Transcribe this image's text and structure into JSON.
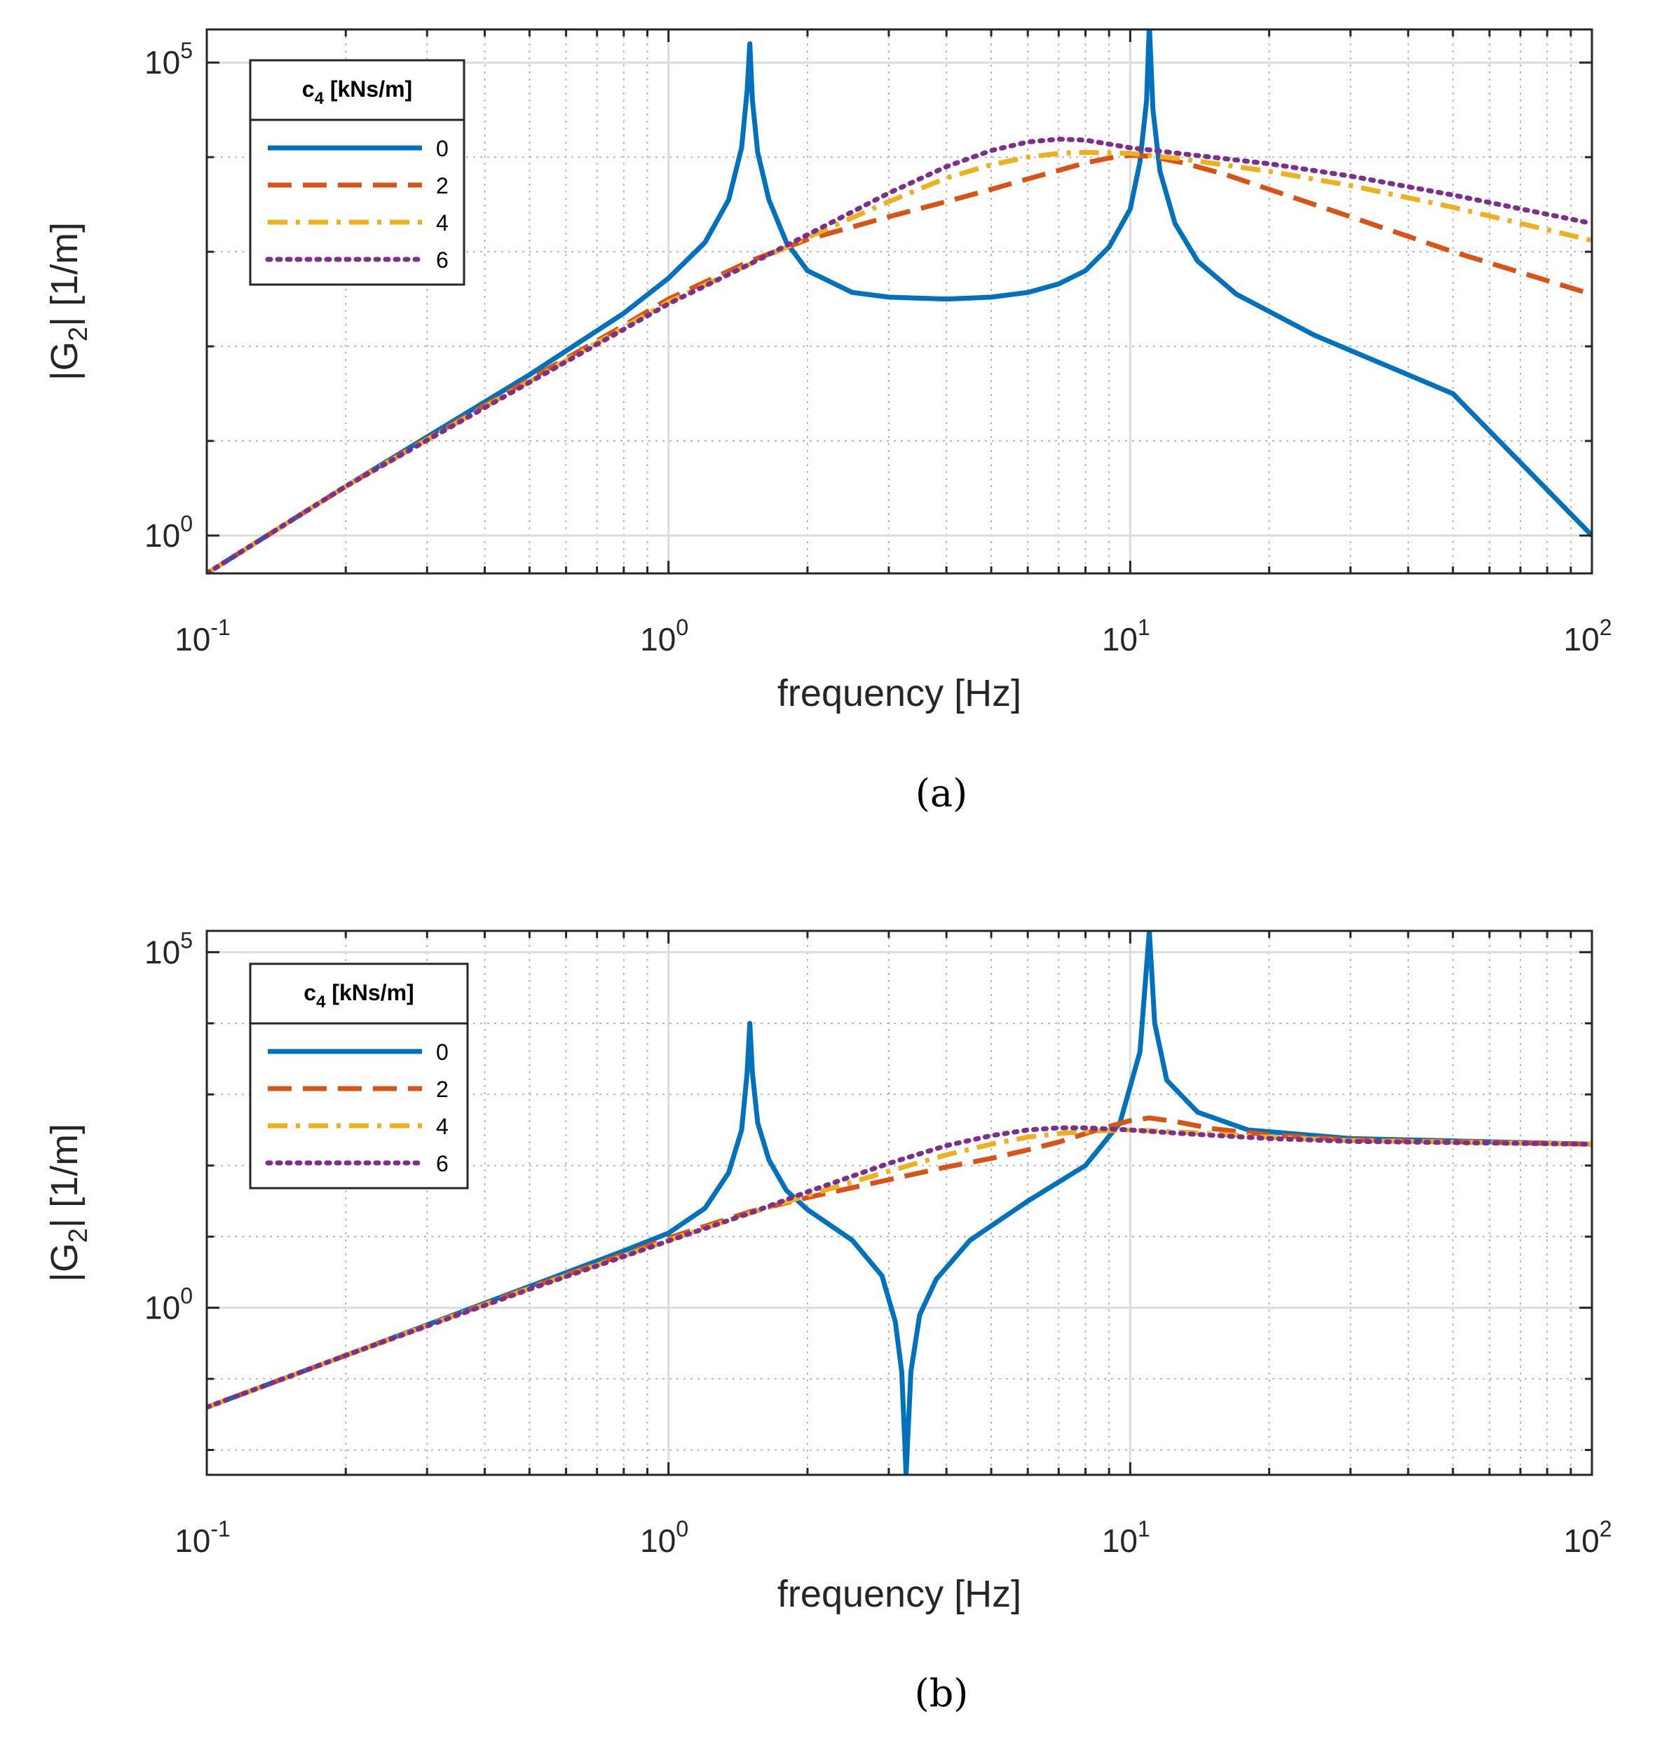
{
  "chart_data": [
    {
      "id": "a",
      "type": "line",
      "panel_label": "(a)",
      "title": "",
      "xlabel": "frequency [Hz]",
      "ylabel": "|G2| [1/m]",
      "ylabel_parts": {
        "main": "|G",
        "sub": "2",
        "rest": "| [1/m]"
      },
      "xscale": "log",
      "yscale": "log",
      "xlim": [
        0.1,
        100
      ],
      "ylim_log10": [
        -0.4,
        5.35
      ],
      "x_ticks": [
        {
          "base": "10",
          "exp": "-1",
          "value": 0.1
        },
        {
          "base": "10",
          "exp": "0",
          "value": 1
        },
        {
          "base": "10",
          "exp": "1",
          "value": 10
        },
        {
          "base": "10",
          "exp": "2",
          "value": 100
        }
      ],
      "y_ticks": [
        {
          "base": "10",
          "exp": "0",
          "value": 1
        },
        {
          "base": "10",
          "exp": "5",
          "value": 100000
        }
      ],
      "grid": true,
      "legend": {
        "title_main": "c",
        "title_sub": "4",
        "title_rest": " [kNs/m]",
        "placement": "top-left",
        "entries": [
          "0",
          "2",
          "4",
          "6"
        ]
      },
      "series": [
        {
          "name": "0",
          "color": "#0072BD",
          "style": "solid",
          "points": [
            [
              0.1,
              -0.4
            ],
            [
              0.2,
              0.52
            ],
            [
              0.5,
              1.7
            ],
            [
              0.8,
              2.35
            ],
            [
              1.0,
              2.72
            ],
            [
              1.2,
              3.1
            ],
            [
              1.35,
              3.55
            ],
            [
              1.44,
              4.1
            ],
            [
              1.48,
              4.7
            ],
            [
              1.5,
              5.2
            ],
            [
              1.52,
              4.6
            ],
            [
              1.56,
              4.05
            ],
            [
              1.65,
              3.55
            ],
            [
              1.8,
              3.1
            ],
            [
              2.0,
              2.8
            ],
            [
              2.5,
              2.57
            ],
            [
              3.0,
              2.52
            ],
            [
              4.0,
              2.5
            ],
            [
              5.0,
              2.52
            ],
            [
              6.0,
              2.57
            ],
            [
              7.0,
              2.66
            ],
            [
              8.0,
              2.8
            ],
            [
              9.0,
              3.05
            ],
            [
              10.0,
              3.45
            ],
            [
              10.5,
              3.95
            ],
            [
              10.85,
              4.6
            ],
            [
              11.0,
              5.4
            ],
            [
              11.2,
              4.5
            ],
            [
              11.6,
              3.85
            ],
            [
              12.5,
              3.3
            ],
            [
              14.0,
              2.9
            ],
            [
              17.0,
              2.55
            ],
            [
              25.0,
              2.12
            ],
            [
              50.0,
              1.5
            ],
            [
              100.0,
              0.0
            ]
          ]
        },
        {
          "name": "2",
          "color": "#D95319",
          "style": "dashed",
          "points": [
            [
              0.1,
              -0.4
            ],
            [
              0.2,
              0.52
            ],
            [
              0.5,
              1.65
            ],
            [
              0.8,
              2.22
            ],
            [
              1.0,
              2.5
            ],
            [
              1.5,
              2.9
            ],
            [
              2.0,
              3.13
            ],
            [
              3.0,
              3.37
            ],
            [
              4.0,
              3.53
            ],
            [
              5.0,
              3.66
            ],
            [
              6.0,
              3.77
            ],
            [
              7.0,
              3.86
            ],
            [
              8.0,
              3.94
            ],
            [
              9.0,
              3.99
            ],
            [
              10.0,
              4.02
            ],
            [
              11.0,
              4.01
            ],
            [
              13.0,
              3.94
            ],
            [
              16.0,
              3.82
            ],
            [
              20.0,
              3.66
            ],
            [
              30.0,
              3.37
            ],
            [
              50.0,
              3.0
            ],
            [
              100.0,
              2.55
            ]
          ]
        },
        {
          "name": "4",
          "color": "#EDB120",
          "style": "dashdot",
          "points": [
            [
              0.1,
              -0.4
            ],
            [
              0.2,
              0.52
            ],
            [
              0.5,
              1.63
            ],
            [
              0.8,
              2.2
            ],
            [
              1.0,
              2.47
            ],
            [
              1.5,
              2.87
            ],
            [
              2.0,
              3.15
            ],
            [
              3.0,
              3.53
            ],
            [
              4.0,
              3.78
            ],
            [
              5.0,
              3.92
            ],
            [
              6.0,
              4.0
            ],
            [
              7.0,
              4.04
            ],
            [
              8.0,
              4.05
            ],
            [
              10.0,
              4.04
            ],
            [
              13.0,
              3.98
            ],
            [
              20.0,
              3.85
            ],
            [
              30.0,
              3.7
            ],
            [
              50.0,
              3.47
            ],
            [
              100.0,
              3.12
            ]
          ]
        },
        {
          "name": "6",
          "color": "#7E2F8E",
          "style": "dotted",
          "points": [
            [
              0.1,
              -0.4
            ],
            [
              0.2,
              0.52
            ],
            [
              0.5,
              1.62
            ],
            [
              0.8,
              2.18
            ],
            [
              1.0,
              2.45
            ],
            [
              1.5,
              2.87
            ],
            [
              2.0,
              3.18
            ],
            [
              3.0,
              3.62
            ],
            [
              4.0,
              3.9
            ],
            [
              5.0,
              4.07
            ],
            [
              6.0,
              4.16
            ],
            [
              7.0,
              4.19
            ],
            [
              8.0,
              4.18
            ],
            [
              10.0,
              4.1
            ],
            [
              15.0,
              4.0
            ],
            [
              20.0,
              3.93
            ],
            [
              30.0,
              3.8
            ],
            [
              50.0,
              3.6
            ],
            [
              100.0,
              3.3
            ]
          ]
        }
      ]
    },
    {
      "id": "b",
      "type": "line",
      "panel_label": "(b)",
      "title": "",
      "xlabel": "frequency [Hz]",
      "ylabel": "|G2| [1/m]",
      "ylabel_parts": {
        "main": "|G",
        "sub": "2",
        "rest": "| [1/m]"
      },
      "xscale": "log",
      "yscale": "log",
      "xlim": [
        0.1,
        100
      ],
      "ylim_log10": [
        -2.35,
        5.3
      ],
      "x_ticks": [
        {
          "base": "10",
          "exp": "-1",
          "value": 0.1
        },
        {
          "base": "10",
          "exp": "0",
          "value": 1
        },
        {
          "base": "10",
          "exp": "1",
          "value": 10
        },
        {
          "base": "10",
          "exp": "2",
          "value": 100
        }
      ],
      "y_ticks": [
        {
          "base": "10",
          "exp": "0",
          "value": 1
        },
        {
          "base": "10",
          "exp": "5",
          "value": 100000
        }
      ],
      "grid": true,
      "legend": {
        "title_main": "c",
        "title_sub": "4",
        "title_rest": " [kNs/m]",
        "placement": "top-left",
        "entries": [
          "0",
          "2",
          "4",
          "6"
        ]
      },
      "series": [
        {
          "name": "0",
          "color": "#0072BD",
          "style": "solid",
          "points": [
            [
              0.1,
              -1.4
            ],
            [
              0.2,
              -0.67
            ],
            [
              0.5,
              0.3
            ],
            [
              0.8,
              0.8
            ],
            [
              1.0,
              1.05
            ],
            [
              1.2,
              1.4
            ],
            [
              1.35,
              1.9
            ],
            [
              1.44,
              2.5
            ],
            [
              1.48,
              3.3
            ],
            [
              1.5,
              4.0
            ],
            [
              1.52,
              3.3
            ],
            [
              1.56,
              2.6
            ],
            [
              1.65,
              2.08
            ],
            [
              1.8,
              1.65
            ],
            [
              2.0,
              1.38
            ],
            [
              2.5,
              0.95
            ],
            [
              2.9,
              0.45
            ],
            [
              3.1,
              -0.2
            ],
            [
              3.2,
              -0.9
            ],
            [
              3.25,
              -1.9
            ],
            [
              3.27,
              -2.35
            ],
            [
              3.3,
              -1.8
            ],
            [
              3.35,
              -0.9
            ],
            [
              3.5,
              -0.1
            ],
            [
              3.8,
              0.4
            ],
            [
              4.5,
              0.95
            ],
            [
              6.0,
              1.5
            ],
            [
              8.0,
              2.0
            ],
            [
              9.5,
              2.6
            ],
            [
              10.5,
              3.6
            ],
            [
              11.0,
              5.3
            ],
            [
              11.3,
              4.0
            ],
            [
              12.0,
              3.2
            ],
            [
              14.0,
              2.75
            ],
            [
              18.0,
              2.5
            ],
            [
              30.0,
              2.38
            ],
            [
              100.0,
              2.3
            ]
          ]
        },
        {
          "name": "2",
          "color": "#D95319",
          "style": "dashed",
          "points": [
            [
              0.1,
              -1.4
            ],
            [
              0.2,
              -0.67
            ],
            [
              0.5,
              0.28
            ],
            [
              0.8,
              0.75
            ],
            [
              1.0,
              0.98
            ],
            [
              1.5,
              1.35
            ],
            [
              2.0,
              1.55
            ],
            [
              3.0,
              1.8
            ],
            [
              4.0,
              1.98
            ],
            [
              5.0,
              2.1
            ],
            [
              6.0,
              2.22
            ],
            [
              7.0,
              2.33
            ],
            [
              8.0,
              2.45
            ],
            [
              9.0,
              2.55
            ],
            [
              10.0,
              2.63
            ],
            [
              11.0,
              2.67
            ],
            [
              12.5,
              2.62
            ],
            [
              15.0,
              2.52
            ],
            [
              20.0,
              2.43
            ],
            [
              30.0,
              2.36
            ],
            [
              100.0,
              2.3
            ]
          ]
        },
        {
          "name": "4",
          "color": "#EDB120",
          "style": "dashdot",
          "points": [
            [
              0.1,
              -1.4
            ],
            [
              0.2,
              -0.67
            ],
            [
              0.5,
              0.27
            ],
            [
              0.8,
              0.73
            ],
            [
              1.0,
              0.95
            ],
            [
              1.5,
              1.33
            ],
            [
              2.0,
              1.58
            ],
            [
              3.0,
              1.92
            ],
            [
              4.0,
              2.15
            ],
            [
              5.0,
              2.3
            ],
            [
              6.0,
              2.4
            ],
            [
              7.0,
              2.45
            ],
            [
              8.0,
              2.48
            ],
            [
              10.0,
              2.5
            ],
            [
              13.0,
              2.47
            ],
            [
              20.0,
              2.4
            ],
            [
              30.0,
              2.35
            ],
            [
              100.0,
              2.3
            ]
          ]
        },
        {
          "name": "6",
          "color": "#7E2F8E",
          "style": "dotted",
          "points": [
            [
              0.1,
              -1.4
            ],
            [
              0.2,
              -0.67
            ],
            [
              0.5,
              0.26
            ],
            [
              0.8,
              0.72
            ],
            [
              1.0,
              0.94
            ],
            [
              1.5,
              1.33
            ],
            [
              2.0,
              1.63
            ],
            [
              3.0,
              2.03
            ],
            [
              4.0,
              2.28
            ],
            [
              5.0,
              2.42
            ],
            [
              6.0,
              2.5
            ],
            [
              7.0,
              2.53
            ],
            [
              8.0,
              2.53
            ],
            [
              10.0,
              2.5
            ],
            [
              13.0,
              2.45
            ],
            [
              20.0,
              2.38
            ],
            [
              30.0,
              2.34
            ],
            [
              100.0,
              2.3
            ]
          ]
        }
      ]
    }
  ]
}
